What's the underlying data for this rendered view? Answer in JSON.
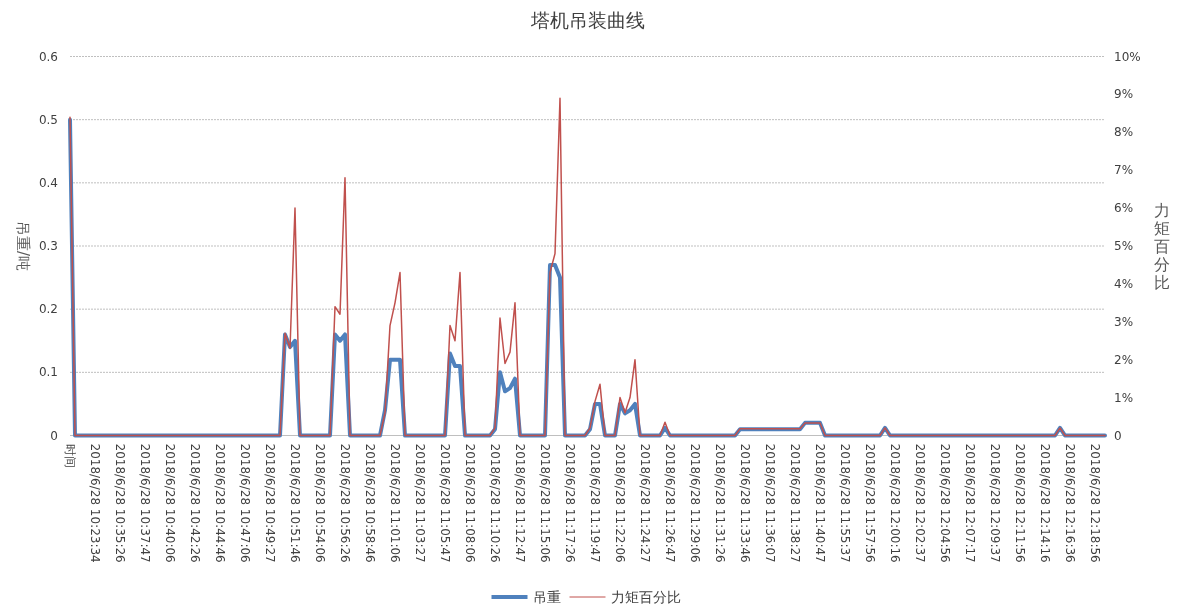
{
  "chart_data": {
    "type": "line",
    "title": "塔机吊装曲线",
    "ylabel": "吊重/吨",
    "y2label": "力矩百分比",
    "categories": [
      "时间",
      null,
      null,
      null,
      null,
      "2018/6/28 10:23:34",
      null,
      null,
      null,
      null,
      "2018/6/28 10:35:26",
      null,
      null,
      null,
      null,
      "2018/6/28 10:37:47",
      null,
      null,
      null,
      null,
      "2018/6/28 10:40:06",
      null,
      null,
      null,
      null,
      "2018/6/28 10:42:26",
      null,
      null,
      null,
      null,
      "2018/6/28 10:44:46",
      null,
      null,
      null,
      null,
      "2018/6/28 10:47:06",
      null,
      null,
      null,
      null,
      "2018/6/28 10:49:27",
      null,
      null,
      null,
      null,
      "2018/6/28 10:51:46",
      null,
      null,
      null,
      null,
      "2018/6/28 10:54:06",
      null,
      null,
      null,
      null,
      "2018/6/28 10:56:26",
      null,
      null,
      null,
      null,
      "2018/6/28 10:58:46",
      null,
      null,
      null,
      null,
      "2018/6/28 11:01:06",
      null,
      null,
      null,
      null,
      "2018/6/28 11:03:27",
      null,
      null,
      null,
      null,
      "2018/6/28 11:05:47",
      null,
      null,
      null,
      null,
      "2018/6/28 11:08:06",
      null,
      null,
      null,
      null,
      "2018/6/28 11:10:26",
      null,
      null,
      null,
      null,
      "2018/6/28 11:12:47",
      null,
      null,
      null,
      null,
      "2018/6/28 11:15:06",
      null,
      null,
      null,
      null,
      "2018/6/28 11:17:26",
      null,
      null,
      null,
      null,
      "2018/6/28 11:19:47",
      null,
      null,
      null,
      null,
      "2018/6/28 11:22:06",
      null,
      null,
      null,
      null,
      "2018/6/28 11:24:27",
      null,
      null,
      null,
      null,
      "2018/6/28 11:26:47",
      null,
      null,
      null,
      null,
      "2018/6/28 11:29:06",
      null,
      null,
      null,
      null,
      "2018/6/28 11:31:26",
      null,
      null,
      null,
      null,
      "2018/6/28 11:33:46",
      null,
      null,
      null,
      null,
      "2018/6/28 11:36:07",
      null,
      null,
      null,
      null,
      "2018/6/28 11:38:27",
      null,
      null,
      null,
      null,
      "2018/6/28 11:40:47",
      null,
      null,
      null,
      null,
      "2018/6/28 11:55:37",
      null,
      null,
      null,
      null,
      "2018/6/28 11:57:56",
      null,
      null,
      null,
      null,
      "2018/6/28 12:00:16",
      null,
      null,
      null,
      null,
      "2018/6/28 12:02:37",
      null,
      null,
      null,
      null,
      "2018/6/28 12:04:56",
      null,
      null,
      null,
      null,
      "2018/6/28 12:07:17",
      null,
      null,
      null,
      null,
      "2018/6/28 12:09:37",
      null,
      null,
      null,
      null,
      "2018/6/28 12:11:56",
      null,
      null,
      null,
      null,
      "2018/6/28 12:14:16",
      null,
      null,
      null,
      null,
      "2018/6/28 12:16:36",
      null,
      null,
      null,
      null,
      "2018/6/28 12:18:56",
      null,
      null
    ],
    "series": [
      {
        "name": "吊重",
        "color": "#4f81bd",
        "values": [
          0.5,
          0,
          0,
          0,
          0,
          0,
          0,
          0,
          0,
          0,
          0,
          0,
          0,
          0,
          0,
          0,
          0,
          0,
          0,
          0,
          0,
          0,
          0,
          0,
          0,
          0,
          0,
          0,
          0,
          0,
          0,
          0,
          0,
          0,
          0,
          0,
          0,
          0,
          0,
          0,
          0,
          0,
          0,
          0.16,
          0.14,
          0.15,
          0,
          0,
          0,
          0,
          0,
          0,
          0,
          0.16,
          0.15,
          0.16,
          0,
          0,
          0,
          0,
          0,
          0,
          0,
          0.04,
          0.12,
          0.12,
          0.12,
          0,
          0,
          0,
          0,
          0,
          0,
          0,
          0,
          0,
          0.13,
          0.11,
          0.11,
          0,
          0,
          0,
          0,
          0,
          0,
          0.01,
          0.1,
          0.07,
          0.075,
          0.09,
          0,
          0,
          0,
          0,
          0,
          0,
          0.27,
          0.27,
          0.25,
          0,
          0,
          0,
          0,
          0,
          0.01,
          0.05,
          0.05,
          0,
          0,
          0,
          0.05,
          0.035,
          0.04,
          0.05,
          0,
          0,
          0,
          0,
          0,
          0.012,
          0,
          0,
          0,
          0,
          0,
          0,
          0,
          0,
          0,
          0,
          0,
          0,
          0,
          0,
          0.01,
          0.01,
          0.01,
          0.01,
          0.01,
          0.01,
          0.01,
          0.01,
          0.01,
          0.01,
          0.01,
          0.01,
          0.01,
          0.02,
          0.02,
          0.02,
          0.02,
          0,
          0,
          0,
          0,
          0,
          0,
          0,
          0,
          0,
          0,
          0,
          0,
          0.012,
          0,
          0,
          0,
          0,
          0,
          0,
          0,
          0,
          0,
          0,
          0,
          0,
          0,
          0,
          0,
          0,
          0,
          0,
          0,
          0,
          0,
          0,
          0,
          0,
          0,
          0,
          0,
          0,
          0,
          0,
          0,
          0,
          0,
          0,
          0.012,
          0,
          0,
          0,
          0,
          0,
          0,
          0,
          0,
          0
        ]
      },
      {
        "name": "力矩百分比",
        "color": "#c0504d",
        "axis": "y2",
        "values": [
          8.4,
          0,
          0,
          0,
          0,
          0,
          0,
          0,
          0,
          0,
          0,
          0,
          0,
          0,
          0,
          0,
          0,
          0,
          0,
          0,
          0,
          0,
          0,
          0,
          0,
          0,
          0,
          0,
          0,
          0,
          0,
          0,
          0,
          0,
          0,
          0,
          0,
          0,
          0,
          0,
          0,
          0,
          0,
          2.7,
          2.3,
          6.0,
          0,
          0,
          0,
          0,
          0,
          0,
          0,
          3.4,
          3.2,
          6.8,
          0,
          0,
          0,
          0,
          0,
          0,
          0,
          0.6,
          2.9,
          3.5,
          4.3,
          0,
          0,
          0,
          0,
          0,
          0,
          0,
          0,
          0,
          2.9,
          2.5,
          4.3,
          0,
          0,
          0,
          0,
          0,
          0,
          0.2,
          3.1,
          1.9,
          2.2,
          3.5,
          0,
          0,
          0,
          0,
          0,
          0,
          4.3,
          4.8,
          8.9,
          0,
          0,
          0,
          0,
          0,
          0.2,
          0.9,
          1.35,
          0,
          0,
          0,
          1.0,
          0.6,
          1.0,
          2.0,
          0,
          0,
          0,
          0,
          0,
          0.35,
          0,
          0,
          0,
          0,
          0,
          0,
          0,
          0,
          0,
          0,
          0,
          0,
          0,
          0,
          0.18,
          0.18,
          0.18,
          0.18,
          0.18,
          0.18,
          0.18,
          0.18,
          0.18,
          0.18,
          0.18,
          0.18,
          0.18,
          0.33,
          0.33,
          0.33,
          0.33,
          0,
          0,
          0,
          0,
          0,
          0,
          0,
          0,
          0,
          0,
          0,
          0,
          0.2,
          0,
          0,
          0,
          0,
          0,
          0,
          0,
          0,
          0,
          0,
          0,
          0,
          0,
          0,
          0,
          0,
          0,
          0,
          0,
          0,
          0,
          0,
          0,
          0,
          0,
          0,
          0,
          0,
          0,
          0,
          0,
          0,
          0,
          0,
          0.2,
          0,
          0,
          0,
          0,
          0,
          0,
          0,
          0,
          0
        ]
      }
    ],
    "ylim": [
      0,
      0.6
    ],
    "yticks": [
      0,
      0.1,
      0.2,
      0.3,
      0.4,
      0.5,
      0.6
    ],
    "y2lim": [
      0,
      10
    ],
    "y2ticks": [
      0,
      {
        "value": 1,
        "label": "1%"
      },
      {
        "value": 2,
        "label": "2%"
      },
      {
        "value": 3,
        "label": "3%"
      },
      {
        "value": 4,
        "label": "4%"
      },
      {
        "value": 5,
        "label": "5%"
      },
      {
        "value": 6,
        "label": "6%"
      },
      {
        "value": 7,
        "label": "7%"
      },
      {
        "value": 8,
        "label": "8%"
      },
      {
        "value": 9,
        "label": "9%"
      },
      {
        "value": 10,
        "label": "10%"
      }
    ],
    "grid": "y",
    "legend": "bottom"
  }
}
